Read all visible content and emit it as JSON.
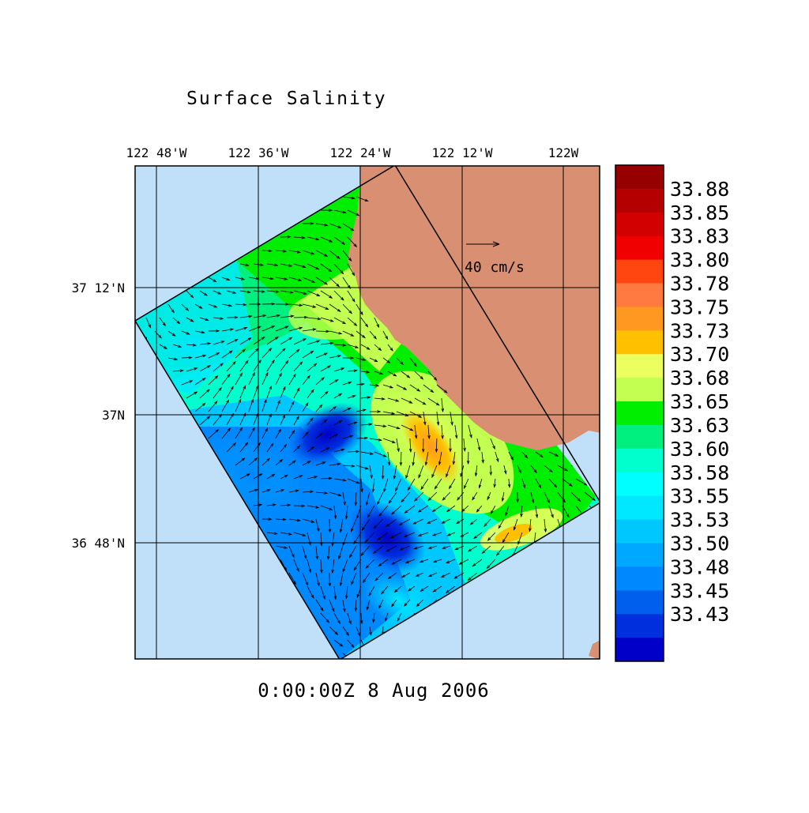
{
  "title": "Surface Salinity",
  "datetime": "0:00:00Z   8 Aug 2006",
  "reference_vector": {
    "label": "40 cm/s",
    "speed_cm_s": 40
  },
  "lon_labels": [
    "122 48'W",
    "122 36'W",
    "122 24'W",
    "122 12'W",
    "122W"
  ],
  "lat_labels": [
    "37 12'N",
    "37N",
    "36 48'N"
  ],
  "colorbar": {
    "labels": [
      "33.88",
      "33.85",
      "33.83",
      "33.80",
      "33.78",
      "33.75",
      "33.73",
      "33.70",
      "33.68",
      "33.65",
      "33.63",
      "33.60",
      "33.58",
      "33.55",
      "33.53",
      "33.50",
      "33.48",
      "33.45",
      "33.43"
    ],
    "colors": [
      "#960000",
      "#b40000",
      "#d20000",
      "#f00000",
      "#ff4610",
      "#ff7a40",
      "#ff9820",
      "#ffc000",
      "#ecff60",
      "#c2ff50",
      "#00ee00",
      "#00f080",
      "#00ffcc",
      "#00ffff",
      "#00e8ff",
      "#00c8ff",
      "#00a8ff",
      "#0088ff",
      "#0060ee",
      "#0030dd",
      "#0000c8"
    ]
  },
  "map_colors": {
    "ocean": "#c0e0fa",
    "land": "#d88f72",
    "grid": "#000000"
  }
}
